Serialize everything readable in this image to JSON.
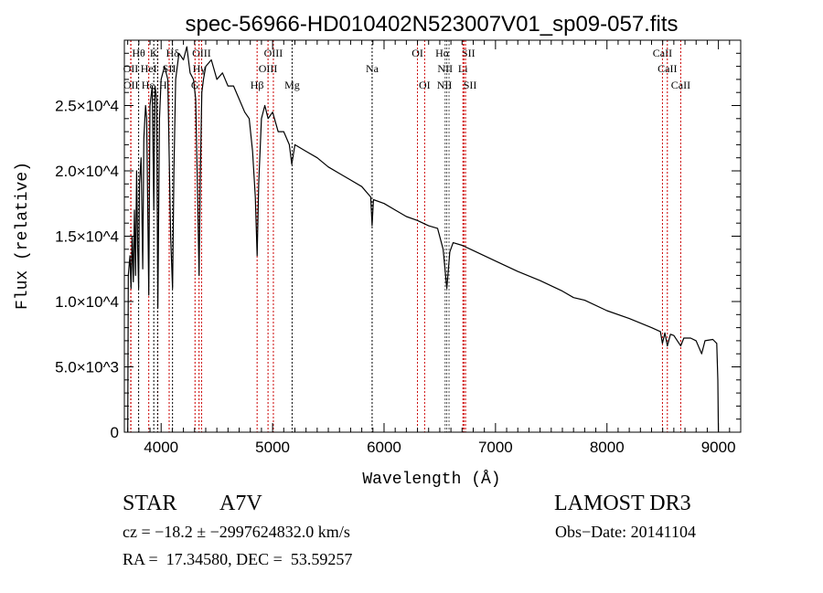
{
  "chart_data": {
    "type": "line",
    "title": "spec-56966-HD010402N523007V01_sp09-057.fits",
    "xlabel": "Wavelength (Å)",
    "ylabel": "Flux (relative)",
    "xlim": [
      3670,
      9200
    ],
    "ylim": [
      0,
      30000
    ],
    "x_ticks": [
      4000,
      5000,
      6000,
      7000,
      8000,
      9000
    ],
    "x_tick_labels": [
      "4000",
      "5000",
      "6000",
      "7000",
      "8000",
      "9000"
    ],
    "y_ticks": [
      0,
      5000,
      10000,
      15000,
      20000,
      25000
    ],
    "y_tick_labels": [
      "0",
      "5.0×10^3",
      "1.0×10^4",
      "1.5×10^4",
      "2.0×10^4",
      "2.5×10^4"
    ],
    "grid": false,
    "series": [
      {
        "name": "spectrum",
        "color": "#000000",
        "points": [
          [
            3700,
            0
          ],
          [
            3705,
            12000
          ],
          [
            3720,
            13500
          ],
          [
            3730,
            11000
          ],
          [
            3740,
            15000
          ],
          [
            3750,
            11500
          ],
          [
            3760,
            17000
          ],
          [
            3770,
            12000
          ],
          [
            3780,
            20000
          ],
          [
            3790,
            14000
          ],
          [
            3798,
            11000
          ],
          [
            3805,
            19000
          ],
          [
            3820,
            21000
          ],
          [
            3835,
            12500
          ],
          [
            3845,
            22500
          ],
          [
            3860,
            25000
          ],
          [
            3870,
            24000
          ],
          [
            3889,
            10500
          ],
          [
            3900,
            25000
          ],
          [
            3920,
            26500
          ],
          [
            3934,
            17000
          ],
          [
            3945,
            26500
          ],
          [
            3960,
            25500
          ],
          [
            3970,
            9500
          ],
          [
            3985,
            24000
          ],
          [
            4000,
            27000
          ],
          [
            4030,
            28000
          ],
          [
            4060,
            27000
          ],
          [
            4085,
            15000
          ],
          [
            4102,
            11000
          ],
          [
            4115,
            20000
          ],
          [
            4130,
            27000
          ],
          [
            4160,
            29000
          ],
          [
            4200,
            28500
          ],
          [
            4230,
            29500
          ],
          [
            4260,
            27500
          ],
          [
            4290,
            27000
          ],
          [
            4310,
            25500
          ],
          [
            4330,
            17000
          ],
          [
            4340,
            12000
          ],
          [
            4350,
            19000
          ],
          [
            4365,
            26000
          ],
          [
            4380,
            27000
          ],
          [
            4400,
            28000
          ],
          [
            4450,
            28500
          ],
          [
            4500,
            27000
          ],
          [
            4550,
            27500
          ],
          [
            4600,
            26500
          ],
          [
            4650,
            26500
          ],
          [
            4700,
            25500
          ],
          [
            4750,
            24500
          ],
          [
            4790,
            24000
          ],
          [
            4820,
            21500
          ],
          [
            4845,
            18000
          ],
          [
            4861,
            13500
          ],
          [
            4875,
            19000
          ],
          [
            4900,
            24000
          ],
          [
            4930,
            25000
          ],
          [
            4960,
            24000
          ],
          [
            5000,
            24500
          ],
          [
            5050,
            23000
          ],
          [
            5100,
            23000
          ],
          [
            5150,
            22000
          ],
          [
            5172,
            20500
          ],
          [
            5200,
            22000
          ],
          [
            5300,
            21500
          ],
          [
            5400,
            21000
          ],
          [
            5500,
            20300
          ],
          [
            5600,
            19800
          ],
          [
            5700,
            19300
          ],
          [
            5800,
            18800
          ],
          [
            5880,
            18000
          ],
          [
            5893,
            15800
          ],
          [
            5905,
            17800
          ],
          [
            6000,
            17500
          ],
          [
            6100,
            17000
          ],
          [
            6200,
            16500
          ],
          [
            6300,
            16200
          ],
          [
            6400,
            15800
          ],
          [
            6480,
            15600
          ],
          [
            6530,
            14000
          ],
          [
            6563,
            11000
          ],
          [
            6590,
            13800
          ],
          [
            6620,
            14500
          ],
          [
            6700,
            14300
          ],
          [
            6800,
            13900
          ],
          [
            7000,
            13100
          ],
          [
            7200,
            12300
          ],
          [
            7400,
            11600
          ],
          [
            7600,
            10800
          ],
          [
            7700,
            10300
          ],
          [
            7800,
            10100
          ],
          [
            8000,
            9300
          ],
          [
            8200,
            8700
          ],
          [
            8400,
            8000
          ],
          [
            8480,
            7700
          ],
          [
            8498,
            6800
          ],
          [
            8520,
            7600
          ],
          [
            8542,
            6600
          ],
          [
            8570,
            7500
          ],
          [
            8600,
            7400
          ],
          [
            8662,
            6600
          ],
          [
            8690,
            7200
          ],
          [
            8750,
            7200
          ],
          [
            8800,
            7000
          ],
          [
            8850,
            6000
          ],
          [
            8880,
            7000
          ],
          [
            8950,
            7100
          ],
          [
            8985,
            6800
          ],
          [
            8995,
            4000
          ],
          [
            9000,
            0
          ]
        ]
      }
    ],
    "line_markers": [
      {
        "label": "Hθ",
        "wavelength": 3798,
        "row": 1,
        "color": "#000000"
      },
      {
        "label": "K",
        "wavelength": 3934,
        "row": 1,
        "color": "#000000"
      },
      {
        "label": "Hδ",
        "wavelength": 4102,
        "row": 1,
        "color": "#000000"
      },
      {
        "label": "OIII",
        "wavelength": 4363,
        "row": 1,
        "color": "#cc0000"
      },
      {
        "label": "OIII",
        "wavelength": 5007,
        "row": 1,
        "color": "#cc0000"
      },
      {
        "label": "OI",
        "wavelength": 6300,
        "row": 1,
        "color": "#cc0000"
      },
      {
        "label": "Hα",
        "wavelength": 6563,
        "row": 1,
        "color": "#555555"
      },
      {
        "label": "SII",
        "wavelength": 6716,
        "row": 1,
        "color": "#cc0000"
      },
      {
        "label": "CaII",
        "wavelength": 8498,
        "row": 1,
        "color": "#cc0000"
      },
      {
        "label": "OII",
        "wavelength": 3727,
        "row": 2,
        "color": "#cc0000"
      },
      {
        "label": "HeI",
        "wavelength": 3889,
        "row": 2,
        "color": "#cc0000"
      },
      {
        "label": "SII",
        "wavelength": 4072,
        "row": 2,
        "color": "#cc0000"
      },
      {
        "label": "Hγ",
        "wavelength": 4340,
        "row": 2,
        "color": "#cc0000"
      },
      {
        "label": "OIII",
        "wavelength": 4959,
        "row": 2,
        "color": "#cc0000"
      },
      {
        "label": "Na",
        "wavelength": 5893,
        "row": 2,
        "color": "#000000"
      },
      {
        "label": "NII",
        "wavelength": 6548,
        "row": 2,
        "color": "#555555"
      },
      {
        "label": "Li",
        "wavelength": 6708,
        "row": 2,
        "color": "#cc0000"
      },
      {
        "label": "CaII",
        "wavelength": 8542,
        "row": 2,
        "color": "#cc0000"
      },
      {
        "label": "OII",
        "wavelength": 3729,
        "row": 3,
        "color": "#cc0000"
      },
      {
        "label": "Hε",
        "wavelength": 3970,
        "row": 3,
        "color": "#cc0000"
      },
      {
        "label": "H",
        "wavelength": 3968,
        "row": 3,
        "color": "#000000"
      },
      {
        "label": "G",
        "wavelength": 4304,
        "row": 3,
        "color": "#cc0000"
      },
      {
        "label": "Hβ",
        "wavelength": 4861,
        "row": 3,
        "color": "#cc0000"
      },
      {
        "label": "Mg",
        "wavelength": 5175,
        "row": 3,
        "color": "#000000"
      },
      {
        "label": "OI",
        "wavelength": 6364,
        "row": 3,
        "color": "#cc0000"
      },
      {
        "label": "NII",
        "wavelength": 6583,
        "row": 3,
        "color": "#555555"
      },
      {
        "label": "SII",
        "wavelength": 6731,
        "row": 3,
        "color": "#cc0000"
      },
      {
        "label": "CaII",
        "wavelength": 8662,
        "row": 3,
        "color": "#cc0000"
      }
    ]
  },
  "info": {
    "object_class": "STAR",
    "subclass": "A7V",
    "survey": "LAMOST DR3",
    "cz": "cz = −18.2 ± −2997624832.0 km/s",
    "obs_date": "Obs−Date: 20141104",
    "coords": "RA =  17.34580, DEC =  53.59257"
  }
}
